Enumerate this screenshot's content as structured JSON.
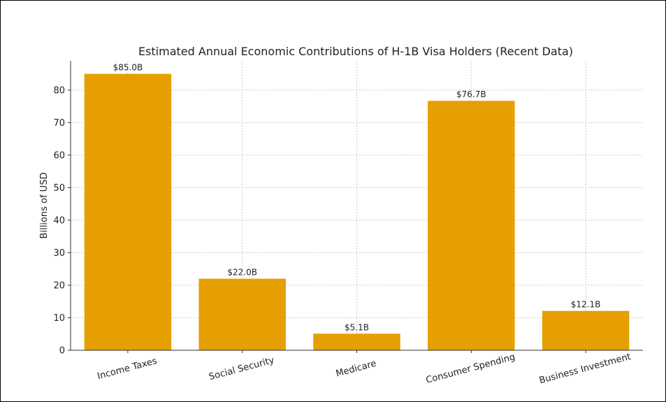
{
  "chart_data": {
    "type": "bar",
    "title": "Estimated Annual Economic Contributions of H-1B Visa Holders (Recent Data)",
    "xlabel": "",
    "ylabel": "Billions of USD",
    "categories": [
      "Income Taxes",
      "Social Security",
      "Medicare",
      "Consumer Spending",
      "Business Investment"
    ],
    "values": [
      85.0,
      22.0,
      5.1,
      76.7,
      12.1
    ],
    "data_labels": [
      "$85.0B",
      "$22.0B",
      "$5.1B",
      "$76.7B",
      "$12.1B"
    ],
    "yticks": [
      0,
      10,
      20,
      30,
      40,
      50,
      60,
      70,
      80
    ],
    "ylim": [
      0,
      89
    ],
    "grid": true,
    "bar_color": "#e69f00"
  }
}
